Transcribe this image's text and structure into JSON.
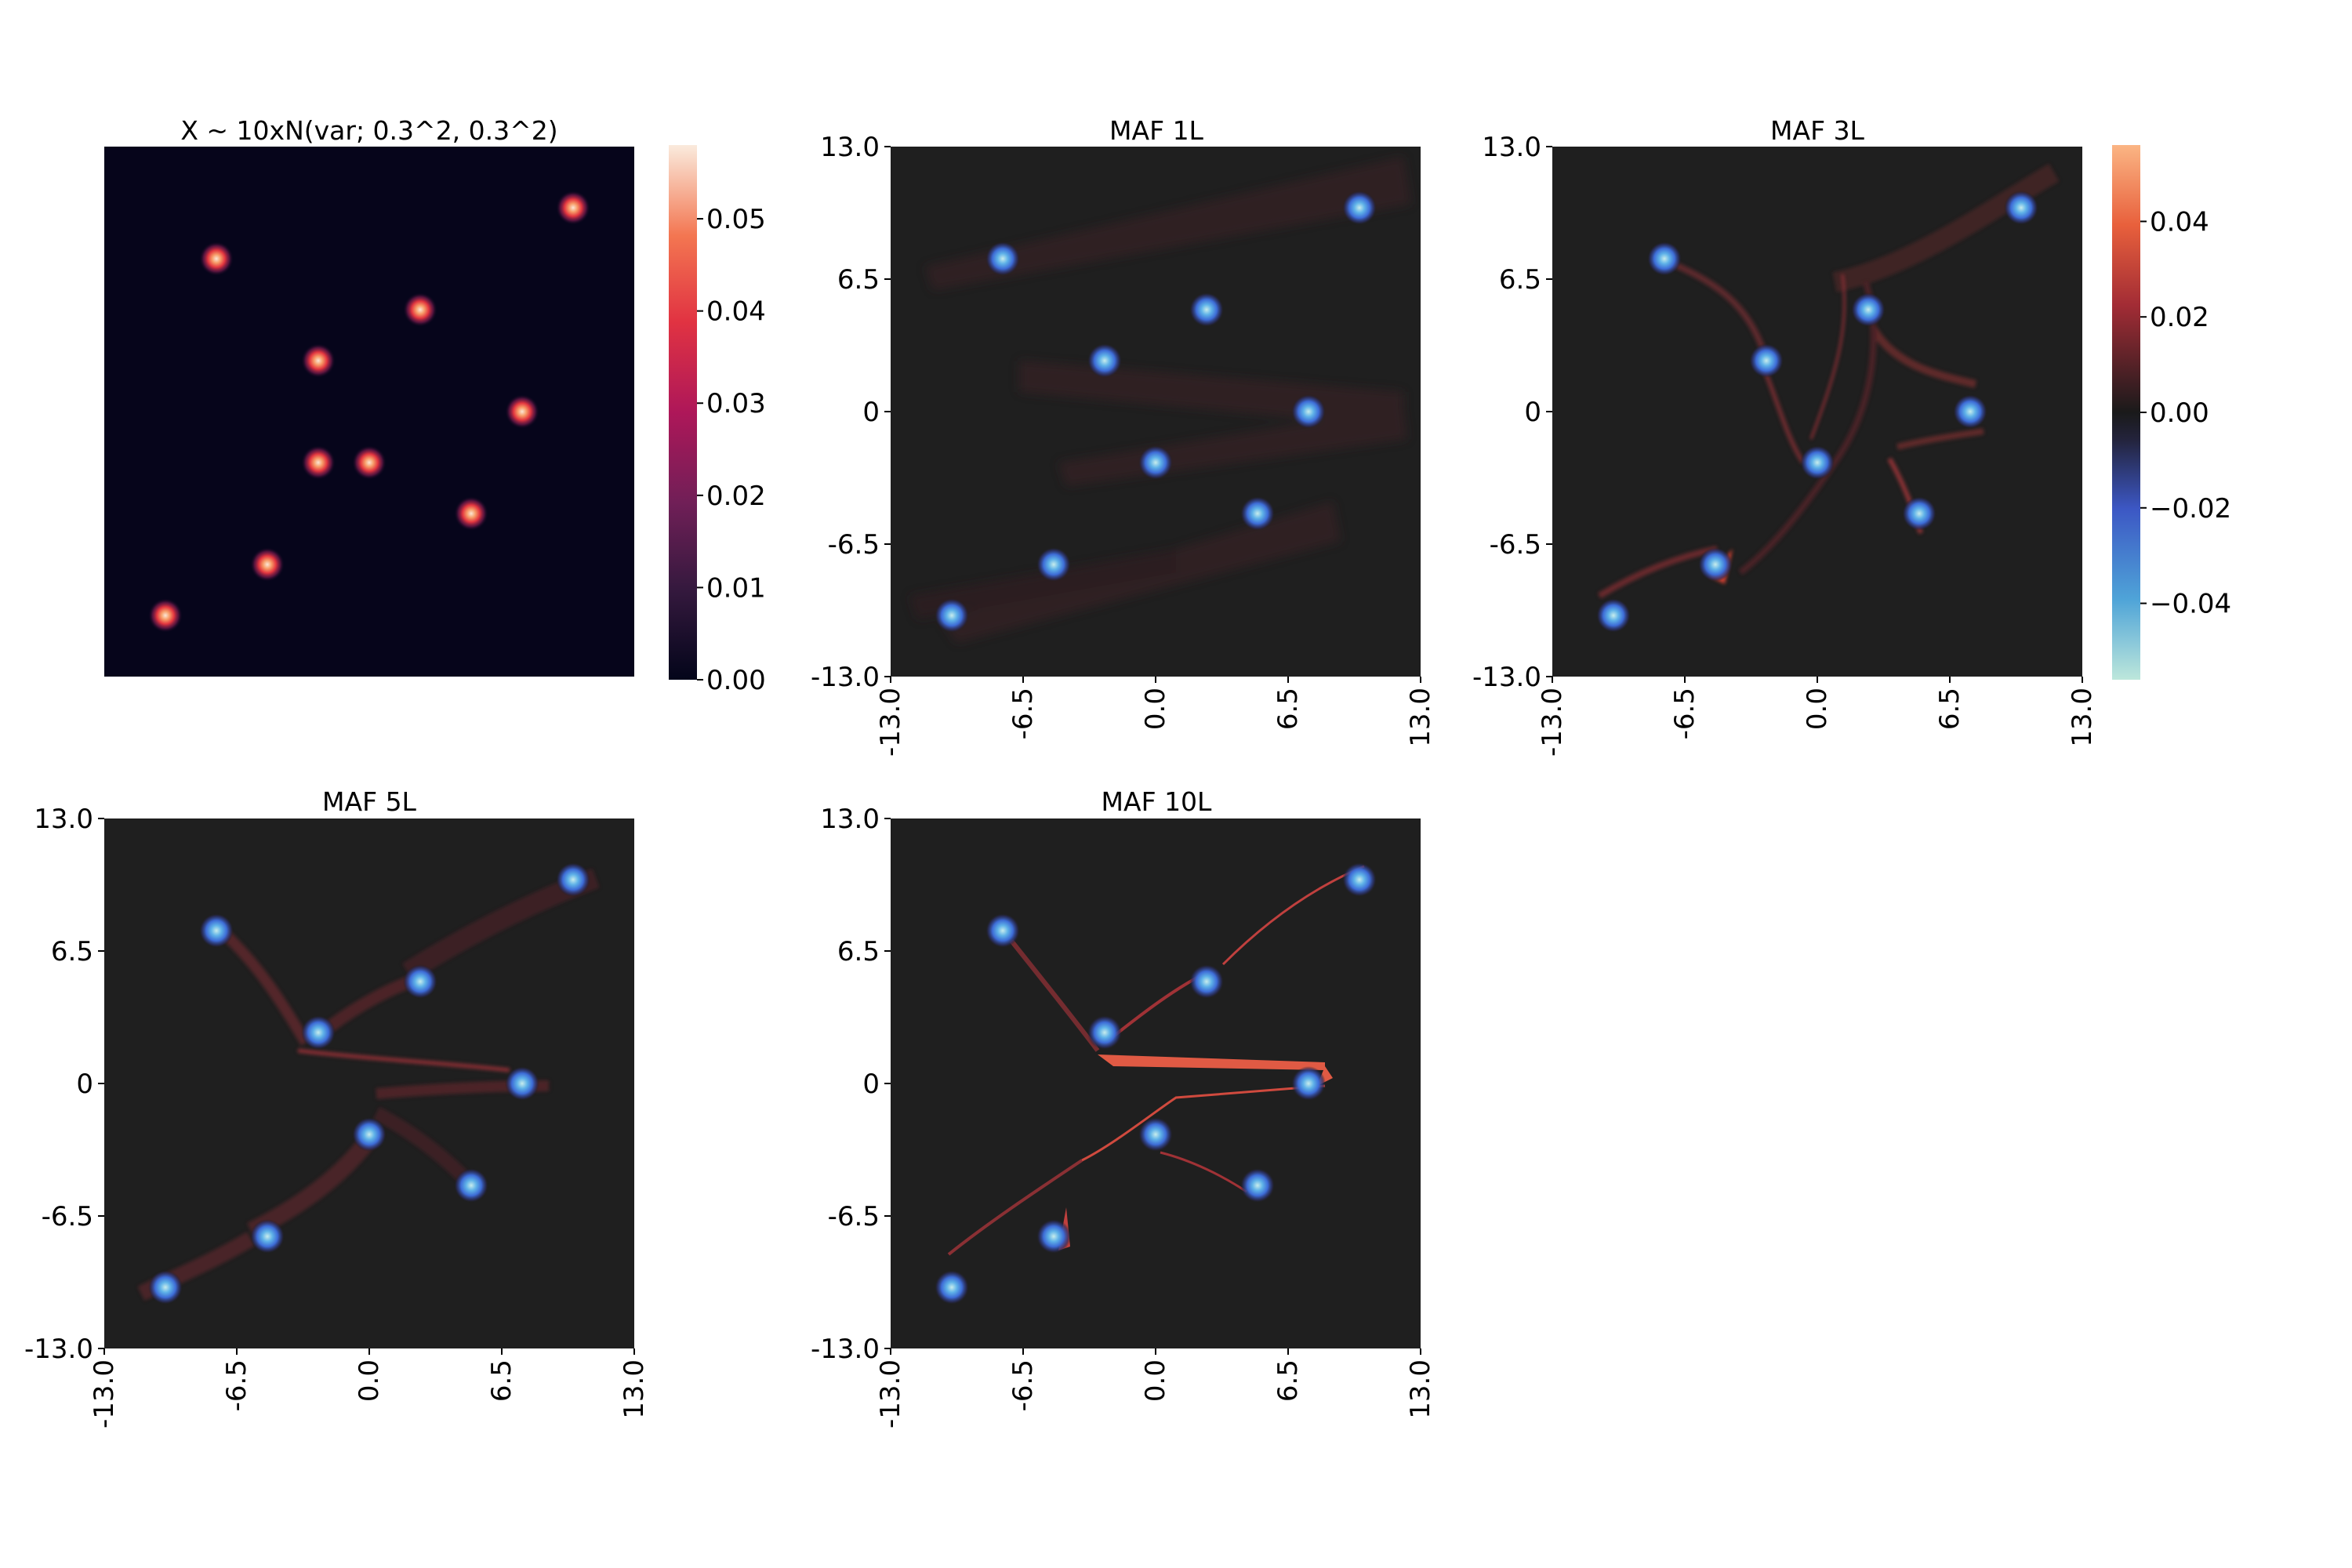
{
  "figure": {
    "background": "#ffffff",
    "panel_dark": "#1f1f1f",
    "target_bg": "#06051b"
  },
  "chart_data": [
    {
      "type": "heatmap",
      "id": "target",
      "title": "X ~ 10xN(var; 0.3^2, 0.3^2)",
      "centers": [
        [
          -7.5,
          7.5
        ],
        [
          -2.5,
          2.5
        ],
        [
          2.5,
          5.0
        ],
        [
          -5.0,
          -7.5
        ],
        [
          7.5,
          0.0
        ],
        [
          10.0,
          10.0
        ],
        [
          0.0,
          -2.5
        ],
        [
          5.0,
          -5.0
        ],
        [
          -10.0,
          -10.0
        ],
        [
          -2.5,
          -2.5
        ]
      ],
      "colorbar": {
        "colormap": "rocket",
        "range": [
          0.0,
          0.058
        ],
        "ticks": [
          "0.00",
          "0.01",
          "0.02",
          "0.03",
          "0.04",
          "0.05"
        ],
        "tick_values": [
          0.0,
          0.01,
          0.02,
          0.03,
          0.04,
          0.05
        ]
      },
      "show_axes": false
    },
    {
      "type": "heatmap",
      "id": "maf1",
      "title": "MAF 1L",
      "xlim": [
        -13.0,
        13.0
      ],
      "ylim": [
        -13.0,
        13.0
      ],
      "xticks": [
        "-13.0",
        "-6.5",
        "0.0",
        "6.5",
        "13.0"
      ],
      "yticks": [
        "13.0",
        "6.5",
        "0",
        "-6.5",
        "-13.0"
      ],
      "centers": [
        [
          10.0,
          10.0
        ],
        [
          -7.5,
          7.5
        ],
        [
          2.5,
          5.0
        ],
        [
          -2.5,
          2.5
        ],
        [
          7.5,
          0.0
        ],
        [
          0.0,
          -2.5
        ],
        [
          5.0,
          -5.0
        ],
        [
          -5.0,
          -7.5
        ],
        [
          -10.0,
          -10.0
        ]
      ]
    },
    {
      "type": "heatmap",
      "id": "maf3",
      "title": "MAF 3L",
      "xlim": [
        -13.0,
        13.0
      ],
      "ylim": [
        -13.0,
        13.0
      ],
      "xticks": [
        "-13.0",
        "-6.5",
        "0.0",
        "6.5",
        "13.0"
      ],
      "yticks": [
        "13.0",
        "6.5",
        "0",
        "-6.5",
        "-13.0"
      ],
      "centers": [
        [
          10.0,
          10.0
        ],
        [
          -7.5,
          7.5
        ],
        [
          2.5,
          5.0
        ],
        [
          -2.5,
          2.5
        ],
        [
          7.5,
          0.0
        ],
        [
          0.0,
          -2.5
        ],
        [
          5.0,
          -5.0
        ],
        [
          -5.0,
          -7.5
        ],
        [
          -10.0,
          -10.0
        ]
      ],
      "colorbar": {
        "colormap": "icefire",
        "range": [
          -0.056,
          0.056
        ],
        "ticks": [
          "0.04",
          "0.02",
          "0.00",
          "−0.02",
          "−0.04"
        ],
        "tick_values": [
          0.04,
          0.02,
          0.0,
          -0.02,
          -0.04
        ]
      }
    },
    {
      "type": "heatmap",
      "id": "maf5",
      "title": "MAF 5L",
      "xlim": [
        -13.0,
        13.0
      ],
      "ylim": [
        -13.0,
        13.0
      ],
      "xticks": [
        "-13.0",
        "-6.5",
        "0.0",
        "6.5",
        "13.0"
      ],
      "yticks": [
        "13.0",
        "6.5",
        "0",
        "-6.5",
        "-13.0"
      ],
      "centers": [
        [
          10.0,
          10.0
        ],
        [
          -7.5,
          7.5
        ],
        [
          2.5,
          5.0
        ],
        [
          -2.5,
          2.5
        ],
        [
          7.5,
          0.0
        ],
        [
          0.0,
          -2.5
        ],
        [
          5.0,
          -5.0
        ],
        [
          -5.0,
          -7.5
        ],
        [
          -10.0,
          -10.0
        ]
      ]
    },
    {
      "type": "heatmap",
      "id": "maf10",
      "title": "MAF 10L",
      "xlim": [
        -13.0,
        13.0
      ],
      "ylim": [
        -13.0,
        13.0
      ],
      "xticks": [
        "-13.0",
        "-6.5",
        "0.0",
        "6.5",
        "13.0"
      ],
      "yticks": [
        "13.0",
        "6.5",
        "0",
        "-6.5",
        "-13.0"
      ],
      "centers": [
        [
          10.0,
          10.0
        ],
        [
          -7.5,
          7.5
        ],
        [
          2.5,
          5.0
        ],
        [
          -2.5,
          2.5
        ],
        [
          7.5,
          0.0
        ],
        [
          0.0,
          -2.5
        ],
        [
          5.0,
          -5.0
        ],
        [
          -5.0,
          -7.5
        ],
        [
          -10.0,
          -10.0
        ]
      ]
    }
  ]
}
